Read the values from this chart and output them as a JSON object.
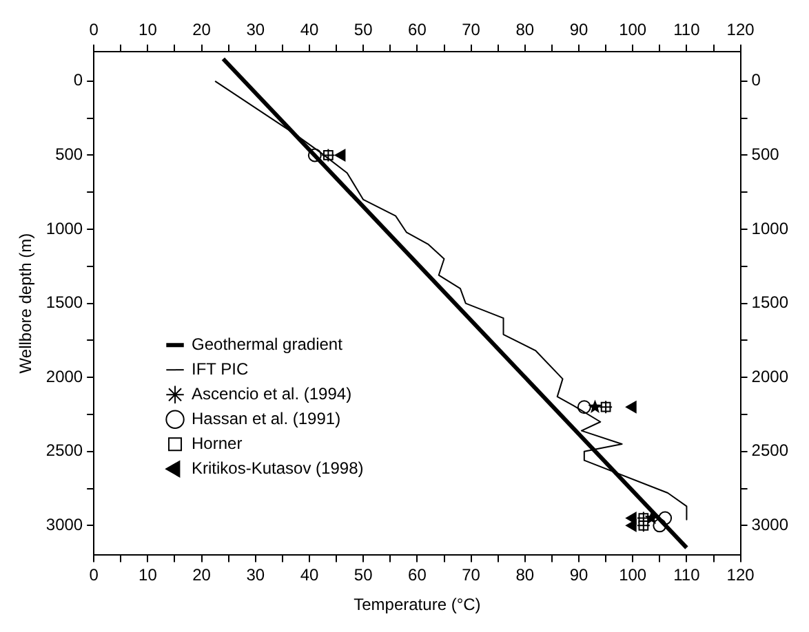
{
  "chart_data": {
    "type": "line",
    "xlabel": "Temperature (°C)",
    "ylabel": "Wellbore depth (m)",
    "xlim": [
      0,
      120
    ],
    "x2lim": [
      0,
      120
    ],
    "ylim": [
      3200,
      -200
    ],
    "y2lim": [
      3200,
      -200
    ],
    "xticks": [
      0,
      {
        "value": 5,
        "label": null
      },
      10,
      {
        "value": 15,
        "label": null
      },
      20,
      {
        "value": 25,
        "label": null
      },
      30,
      {
        "value": 35,
        "label": null
      },
      40,
      {
        "value": 45,
        "label": null
      },
      50,
      {
        "value": 55,
        "label": null
      },
      60,
      {
        "value": 65,
        "label": null
      },
      70,
      {
        "value": 75,
        "label": null
      },
      80,
      {
        "value": 85,
        "label": null
      },
      90,
      {
        "value": 95,
        "label": null
      },
      100,
      {
        "value": 105,
        "label": null
      },
      110,
      {
        "value": 115,
        "label": null
      },
      120
    ],
    "x2ticks": [
      0,
      {
        "value": 5,
        "label": null
      },
      10,
      {
        "value": 15,
        "label": null
      },
      20,
      {
        "value": 25,
        "label": null
      },
      30,
      {
        "value": 35,
        "label": null
      },
      40,
      {
        "value": 45,
        "label": null
      },
      50,
      {
        "value": 55,
        "label": null
      },
      60,
      {
        "value": 65,
        "label": null
      },
      70,
      {
        "value": 75,
        "label": null
      },
      80,
      {
        "value": 85,
        "label": null
      },
      90,
      {
        "value": 95,
        "label": null
      },
      100,
      {
        "value": 105,
        "label": null
      },
      110,
      {
        "value": 115,
        "label": null
      },
      120
    ],
    "yticks": [
      0,
      {
        "value": 250,
        "label": null
      },
      500,
      {
        "value": 750,
        "label": null
      },
      1000,
      {
        "value": 1250,
        "label": null
      },
      1500,
      {
        "value": 1750,
        "label": null
      },
      2000,
      {
        "value": 2250,
        "label": null
      },
      2500,
      {
        "value": 2750,
        "label": null
      },
      3000
    ],
    "y2ticks": [
      0,
      {
        "value": 250,
        "label": null
      },
      500,
      {
        "value": 750,
        "label": null
      },
      1000,
      {
        "value": 1250,
        "label": null
      },
      1500,
      {
        "value": 1750,
        "label": null
      },
      2000,
      {
        "value": 2250,
        "label": null
      },
      2500,
      {
        "value": 2750,
        "label": null
      },
      3000
    ],
    "grid": false,
    "legend": "left",
    "series": [
      {
        "name": "Geothermal gradient",
        "type": "line",
        "color": "#000000",
        "marker": "none",
        "x": [
          24,
          110
        ],
        "values": [
          -150,
          3150
        ]
      },
      {
        "name": "IFT PIC",
        "type": "line",
        "color": "#000000",
        "marker": "none",
        "x": [
          22.5,
          37,
          42,
          47,
          50,
          56,
          58,
          62,
          65,
          64,
          68,
          69,
          76,
          76,
          82,
          87,
          86,
          89,
          94,
          90.5,
          98,
          91,
          91,
          106.5,
          110,
          110
        ],
        "values": [
          0,
          350,
          480,
          620,
          800,
          910,
          1020,
          1100,
          1200,
          1310,
          1400,
          1500,
          1600,
          1710,
          1820,
          2010,
          2130,
          2190,
          2300,
          2360,
          2450,
          2500,
          2560,
          2780,
          2870,
          2960
        ]
      },
      {
        "name": "Ascencio et al. (1994)",
        "type": "scatter",
        "color": "#000000",
        "marker": "star",
        "x": [
          93,
          103.5
        ],
        "values": [
          2200,
          2950
        ]
      },
      {
        "name": "Hassan et al. (1991)",
        "type": "scatter",
        "color": "#000000",
        "marker": "circle",
        "x": [
          41,
          91,
          106,
          105
        ],
        "values": [
          500,
          2200,
          2950,
          3000
        ]
      },
      {
        "name": "Horner",
        "type": "scatter",
        "color": "#000000",
        "marker": "square",
        "x": [
          43.5,
          95,
          102,
          102
        ],
        "values": [
          500,
          2200,
          2950,
          3000
        ]
      },
      {
        "name": "Kritikos-Kutasov (1998)",
        "type": "scatter",
        "color": "#000000",
        "marker": "triangle",
        "x": [
          46,
          100,
          100,
          100
        ],
        "values": [
          500,
          2200,
          2950,
          3000
        ]
      }
    ]
  }
}
